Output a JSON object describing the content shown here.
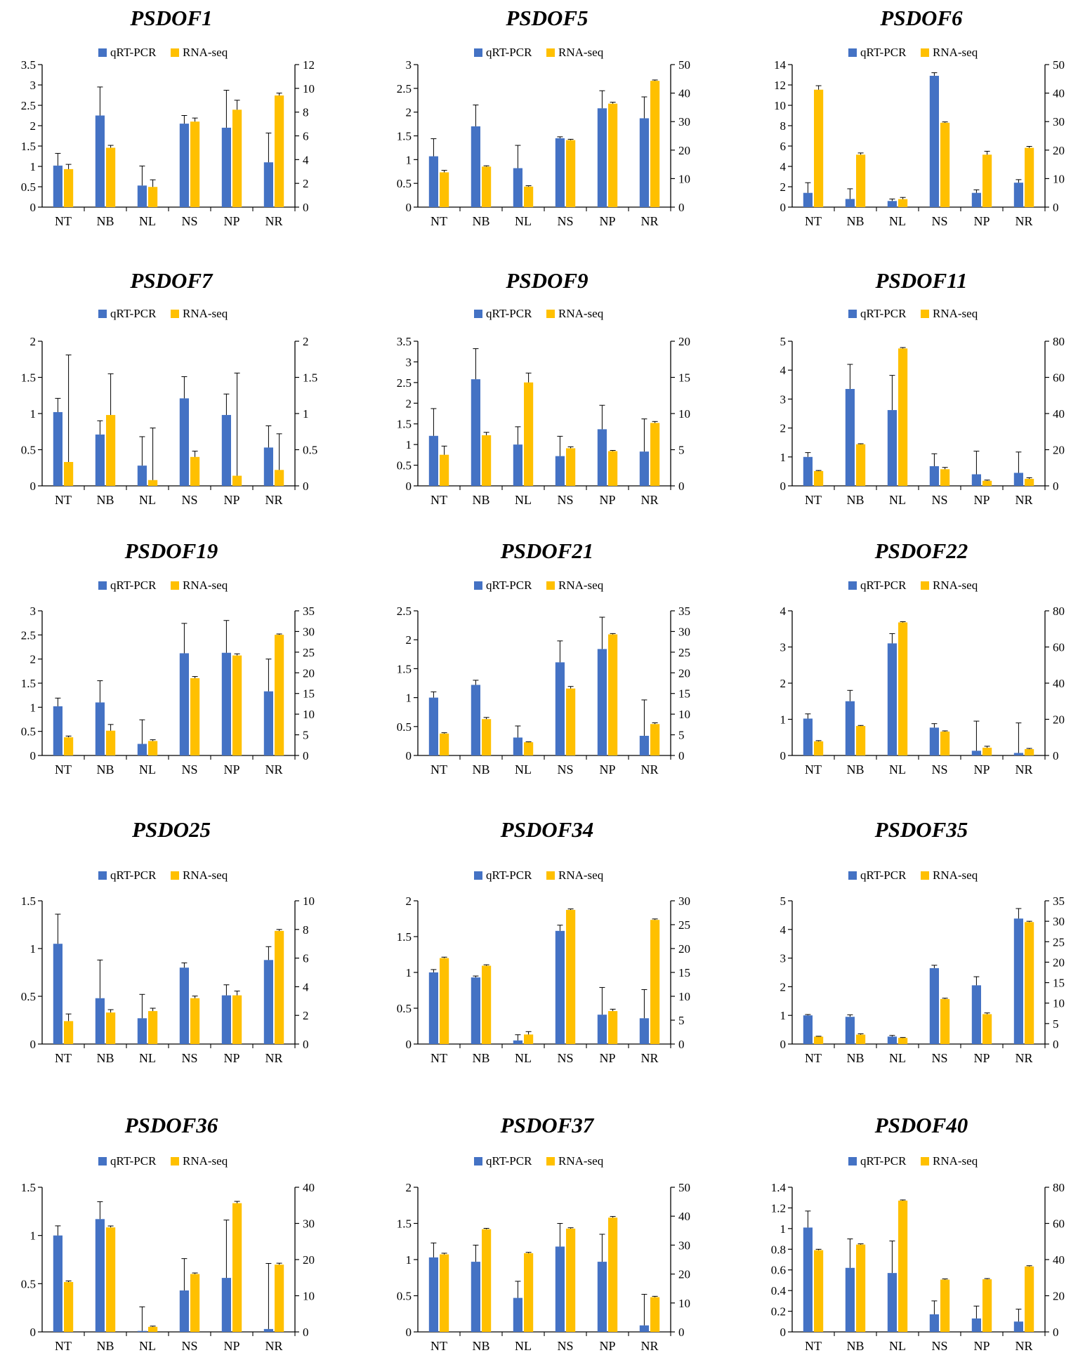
{
  "colors": {
    "qrt": "#4472C4",
    "rna": "#FFC000",
    "axis": "#000000",
    "errorbar": "#000000"
  },
  "chart_data": [
    {
      "type": "bar",
      "title": "PSDOF1",
      "categories": [
        "NT",
        "NB",
        "NL",
        "NS",
        "NP",
        "NR"
      ],
      "left_axis": {
        "max": 3.5,
        "ticks": [
          "0",
          "0.5",
          "1",
          "1.5",
          "2",
          "2.5",
          "3",
          "3.5"
        ]
      },
      "right_axis": {
        "max": 12,
        "ticks": [
          "0",
          "2",
          "4",
          "6",
          "8",
          "10",
          "12"
        ]
      },
      "series": [
        {
          "name": "qRT-PCR",
          "axis": "left",
          "values": [
            1.02,
            2.25,
            0.53,
            2.05,
            1.95,
            1.1
          ],
          "errors": [
            0.3,
            0.7,
            0.48,
            0.2,
            0.92,
            0.72
          ]
        },
        {
          "name": "RNA-seq",
          "axis": "right",
          "values": [
            3.2,
            5.0,
            1.7,
            7.2,
            8.2,
            9.4
          ],
          "errors": [
            0.4,
            0.2,
            0.6,
            0.3,
            0.8,
            0.2
          ]
        }
      ]
    },
    {
      "type": "bar",
      "title": "PSDOF5",
      "categories": [
        "NT",
        "NB",
        "NL",
        "NS",
        "NP",
        "NR"
      ],
      "left_axis": {
        "max": 3,
        "ticks": [
          "0",
          "0.5",
          "1",
          "1.5",
          "2",
          "2.5",
          "3"
        ]
      },
      "right_axis": {
        "max": 50,
        "ticks": [
          "0",
          "10",
          "20",
          "30",
          "40",
          "50"
        ]
      },
      "series": [
        {
          "name": "qRT-PCR",
          "axis": "left",
          "values": [
            1.07,
            1.7,
            0.82,
            1.45,
            2.08,
            1.87
          ],
          "errors": [
            0.37,
            0.45,
            0.48,
            0.03,
            0.37,
            0.45
          ]
        },
        {
          "name": "RNA-seq",
          "axis": "right",
          "values": [
            12.2,
            14.2,
            7.2,
            23.5,
            36.3,
            44.3
          ],
          "errors": [
            0.7,
            0.3,
            0.3,
            0.3,
            0.5,
            0.3
          ]
        }
      ]
    },
    {
      "type": "bar",
      "title": "PSDOF6",
      "categories": [
        "NT",
        "NB",
        "NL",
        "NS",
        "NP",
        "NR"
      ],
      "left_axis": {
        "max": 14,
        "ticks": [
          "0",
          "2",
          "4",
          "6",
          "8",
          "10",
          "12",
          "14"
        ]
      },
      "right_axis": {
        "max": 50,
        "ticks": [
          "0",
          "10",
          "20",
          "30",
          "40",
          "50"
        ]
      },
      "series": [
        {
          "name": "qRT-PCR",
          "axis": "left",
          "values": [
            1.4,
            0.8,
            0.6,
            12.9,
            1.4,
            2.4
          ],
          "errors": [
            1.0,
            1.0,
            0.2,
            0.3,
            0.3,
            0.3
          ]
        },
        {
          "name": "RNA-seq",
          "axis": "right",
          "values": [
            41.2,
            18.4,
            2.8,
            29.6,
            18.4,
            20.8
          ],
          "errors": [
            1.4,
            0.6,
            0.6,
            0.3,
            1.2,
            0.5
          ]
        }
      ]
    },
    {
      "type": "bar",
      "title": "PSDOF7",
      "categories": [
        "NT",
        "NB",
        "NL",
        "NS",
        "NP",
        "NR"
      ],
      "left_axis": {
        "max": 2,
        "ticks": [
          "0",
          "0.5",
          "1",
          "1.5",
          "2"
        ]
      },
      "right_axis": {
        "max": 2,
        "ticks": [
          "0",
          "0.5",
          "1",
          "1.5",
          "2"
        ]
      },
      "series": [
        {
          "name": "qRT-PCR",
          "axis": "left",
          "values": [
            1.02,
            0.71,
            0.28,
            1.21,
            0.98,
            0.53
          ],
          "errors": [
            0.19,
            0.19,
            0.4,
            0.3,
            0.29,
            0.3
          ]
        },
        {
          "name": "RNA-seq",
          "axis": "right",
          "values": [
            0.33,
            0.98,
            0.08,
            0.4,
            0.14,
            0.22
          ],
          "errors": [
            1.48,
            0.57,
            0.72,
            0.08,
            1.42,
            0.5
          ]
        }
      ]
    },
    {
      "type": "bar",
      "title": "PSDOF9",
      "categories": [
        "NT",
        "NB",
        "NL",
        "NS",
        "NP",
        "NR"
      ],
      "left_axis": {
        "max": 3.5,
        "ticks": [
          "0",
          "0.5",
          "1",
          "1.5",
          "2",
          "2.5",
          "3",
          "3.5"
        ]
      },
      "right_axis": {
        "max": 20,
        "ticks": [
          "0",
          "5",
          "10",
          "15",
          "20"
        ]
      },
      "series": [
        {
          "name": "qRT-PCR",
          "axis": "left",
          "values": [
            1.21,
            2.58,
            1.0,
            0.72,
            1.37,
            0.83
          ],
          "errors": [
            0.66,
            0.74,
            0.43,
            0.48,
            0.58,
            0.79
          ]
        },
        {
          "name": "RNA-seq",
          "axis": "right",
          "values": [
            4.3,
            7.0,
            14.3,
            5.2,
            4.8,
            8.7
          ],
          "errors": [
            1.2,
            0.4,
            1.3,
            0.2,
            0.1,
            0.2
          ]
        }
      ]
    },
    {
      "type": "bar",
      "title": "PSDOF11",
      "categories": [
        "NT",
        "NB",
        "NL",
        "NS",
        "NP",
        "NR"
      ],
      "left_axis": {
        "max": 5,
        "ticks": [
          "0",
          "1",
          "2",
          "3",
          "4",
          "5"
        ]
      },
      "right_axis": {
        "max": 80,
        "ticks": [
          "0",
          "20",
          "40",
          "60",
          "80"
        ]
      },
      "series": [
        {
          "name": "qRT-PCR",
          "axis": "left",
          "values": [
            1.0,
            3.35,
            2.62,
            0.68,
            0.4,
            0.45
          ],
          "errors": [
            0.15,
            0.85,
            1.2,
            0.43,
            0.8,
            0.72
          ]
        },
        {
          "name": "RNA-seq",
          "axis": "right",
          "values": [
            8.2,
            23.0,
            76.0,
            9.2,
            2.8,
            3.9
          ],
          "errors": [
            0.3,
            0.3,
            0.5,
            1.0,
            0.4,
            0.6
          ]
        }
      ]
    },
    {
      "type": "bar",
      "title": "PSDOF19",
      "categories": [
        "NT",
        "NB",
        "NL",
        "NS",
        "NP",
        "NR"
      ],
      "left_axis": {
        "max": 3,
        "ticks": [
          "0",
          "0.5",
          "1",
          "1.5",
          "2",
          "2.5",
          "3"
        ]
      },
      "right_axis": {
        "max": 35,
        "ticks": [
          "0",
          "5",
          "10",
          "15",
          "20",
          "25",
          "30",
          "35"
        ]
      },
      "series": [
        {
          "name": "qRT-PCR",
          "axis": "left",
          "values": [
            1.02,
            1.1,
            0.24,
            2.12,
            2.13,
            1.33
          ],
          "errors": [
            0.17,
            0.45,
            0.5,
            0.62,
            0.67,
            0.67
          ]
        },
        {
          "name": "RNA-seq",
          "axis": "right",
          "values": [
            4.4,
            6.0,
            3.5,
            18.7,
            24.2,
            29.2
          ],
          "errors": [
            0.3,
            1.5,
            0.3,
            0.4,
            0.4,
            0.2
          ]
        }
      ]
    },
    {
      "type": "bar",
      "title": "PSDOF21",
      "categories": [
        "NT",
        "NB",
        "NL",
        "NS",
        "NP",
        "NR"
      ],
      "left_axis": {
        "max": 2.5,
        "ticks": [
          "0",
          "0.5",
          "1",
          "1.5",
          "2",
          "2.5"
        ]
      },
      "right_axis": {
        "max": 35,
        "ticks": [
          "0",
          "5",
          "10",
          "15",
          "20",
          "25",
          "30",
          "35"
        ]
      },
      "series": [
        {
          "name": "qRT-PCR",
          "axis": "left",
          "values": [
            1.0,
            1.22,
            0.31,
            1.61,
            1.84,
            0.34
          ],
          "errors": [
            0.1,
            0.08,
            0.2,
            0.37,
            0.55,
            0.62
          ]
        },
        {
          "name": "RNA-seq",
          "axis": "right",
          "values": [
            5.3,
            8.8,
            3.2,
            16.2,
            29.3,
            7.6
          ],
          "errors": [
            0.2,
            0.4,
            0.1,
            0.5,
            0.2,
            0.3
          ]
        }
      ]
    },
    {
      "type": "bar",
      "title": "PSDOF22",
      "categories": [
        "NT",
        "NB",
        "NL",
        "NS",
        "NP",
        "NR"
      ],
      "left_axis": {
        "max": 4,
        "ticks": [
          "0",
          "1",
          "2",
          "3",
          "4"
        ]
      },
      "right_axis": {
        "max": 80,
        "ticks": [
          "0",
          "20",
          "40",
          "60",
          "80"
        ]
      },
      "series": [
        {
          "name": "qRT-PCR",
          "axis": "left",
          "values": [
            1.02,
            1.5,
            3.1,
            0.77,
            0.13,
            0.07
          ],
          "errors": [
            0.13,
            0.3,
            0.27,
            0.11,
            0.82,
            0.83
          ]
        },
        {
          "name": "RNA-seq",
          "axis": "right",
          "values": [
            7.8,
            16.3,
            73.6,
            13.2,
            4.3,
            3.5
          ],
          "errors": [
            0.4,
            0.3,
            0.4,
            0.4,
            0.8,
            0.4
          ]
        }
      ]
    },
    {
      "type": "bar",
      "title": "PSDO25",
      "categories": [
        "NT",
        "NB",
        "NL",
        "NS",
        "NP",
        "NR"
      ],
      "left_axis": {
        "max": 1.5,
        "ticks": [
          "0",
          "0.5",
          "1",
          "1.5"
        ]
      },
      "right_axis": {
        "max": 10,
        "ticks": [
          "0",
          "2",
          "4",
          "6",
          "8",
          "10"
        ]
      },
      "series": [
        {
          "name": "qRT-PCR",
          "axis": "left",
          "values": [
            1.05,
            0.48,
            0.27,
            0.8,
            0.51,
            0.88
          ],
          "errors": [
            0.31,
            0.4,
            0.25,
            0.05,
            0.11,
            0.14
          ]
        },
        {
          "name": "RNA-seq",
          "axis": "right",
          "values": [
            1.6,
            2.2,
            2.3,
            3.2,
            3.4,
            7.9
          ],
          "errors": [
            0.5,
            0.2,
            0.2,
            0.15,
            0.3,
            0.1
          ]
        }
      ]
    },
    {
      "type": "bar",
      "title": "PSDOF34",
      "categories": [
        "NT",
        "NB",
        "NL",
        "NS",
        "NP",
        "NR"
      ],
      "left_axis": {
        "max": 2,
        "ticks": [
          "0",
          "0.5",
          "1",
          "1.5",
          "2"
        ]
      },
      "right_axis": {
        "max": 30,
        "ticks": [
          "0",
          "5",
          "10",
          "15",
          "20",
          "25",
          "30"
        ]
      },
      "series": [
        {
          "name": "qRT-PCR",
          "axis": "left",
          "values": [
            1.0,
            0.93,
            0.05,
            1.58,
            0.41,
            0.36
          ],
          "errors": [
            0.04,
            0.02,
            0.08,
            0.08,
            0.38,
            0.4
          ]
        },
        {
          "name": "RNA-seq",
          "axis": "right",
          "values": [
            18.0,
            16.4,
            2.0,
            28.1,
            6.9,
            26.0
          ],
          "errors": [
            0.2,
            0.2,
            0.6,
            0.2,
            0.4,
            0.2
          ]
        }
      ]
    },
    {
      "type": "bar",
      "title": "PSDOF35",
      "categories": [
        "NT",
        "NB",
        "NL",
        "NS",
        "NP",
        "NR"
      ],
      "left_axis": {
        "max": 5,
        "ticks": [
          "0",
          "1",
          "2",
          "3",
          "4",
          "5"
        ]
      },
      "right_axis": {
        "max": 35,
        "ticks": [
          "0",
          "5",
          "10",
          "15",
          "20",
          "25",
          "30",
          "35"
        ]
      },
      "series": [
        {
          "name": "qRT-PCR",
          "axis": "left",
          "values": [
            1.0,
            0.95,
            0.26,
            2.65,
            2.05,
            4.38
          ],
          "errors": [
            0.03,
            0.07,
            0.04,
            0.1,
            0.3,
            0.35
          ]
        },
        {
          "name": "RNA-seq",
          "axis": "right",
          "values": [
            1.8,
            2.3,
            1.5,
            11.0,
            7.3,
            29.8
          ],
          "errors": [
            0.1,
            0.2,
            0.1,
            0.2,
            0.3,
            0.2
          ]
        }
      ]
    },
    {
      "type": "bar",
      "title": "PSDOF36",
      "categories": [
        "NT",
        "NB",
        "NL",
        "NS",
        "NP",
        "NR"
      ],
      "left_axis": {
        "max": 1.5,
        "ticks": [
          "0",
          "0.5",
          "1",
          "1.5"
        ]
      },
      "right_axis": {
        "max": 40,
        "ticks": [
          "0",
          "10",
          "20",
          "30",
          "40"
        ]
      },
      "series": [
        {
          "name": "qRT-PCR",
          "axis": "left",
          "values": [
            1.0,
            1.17,
            0.01,
            0.43,
            0.56,
            0.03
          ],
          "errors": [
            0.1,
            0.18,
            0.25,
            0.33,
            0.6,
            0.68
          ]
        },
        {
          "name": "RNA-seq",
          "axis": "right",
          "values": [
            13.8,
            28.9,
            1.4,
            16.0,
            35.6,
            18.6
          ],
          "errors": [
            0.3,
            0.4,
            0.2,
            0.3,
            0.5,
            0.4
          ]
        }
      ]
    },
    {
      "type": "bar",
      "title": "PSDOF37",
      "categories": [
        "NT",
        "NB",
        "NL",
        "NS",
        "NP",
        "NR"
      ],
      "left_axis": {
        "max": 2,
        "ticks": [
          "0",
          "0.5",
          "1",
          "1.5",
          "2"
        ]
      },
      "right_axis": {
        "max": 50,
        "ticks": [
          "0",
          "10",
          "20",
          "30",
          "40",
          "50"
        ]
      },
      "series": [
        {
          "name": "qRT-PCR",
          "axis": "left",
          "values": [
            1.03,
            0.97,
            0.47,
            1.18,
            0.97,
            0.09
          ],
          "errors": [
            0.2,
            0.23,
            0.23,
            0.32,
            0.38,
            0.43
          ]
        },
        {
          "name": "RNA-seq",
          "axis": "right",
          "values": [
            26.8,
            35.5,
            27.2,
            35.7,
            39.5,
            12.0
          ],
          "errors": [
            0.4,
            0.3,
            0.3,
            0.3,
            0.4,
            0.3
          ]
        }
      ]
    },
    {
      "type": "bar",
      "title": "PSDOF40",
      "categories": [
        "NT",
        "NB",
        "NL",
        "NS",
        "NP",
        "NR"
      ],
      "left_axis": {
        "max": 1.4,
        "ticks": [
          "0",
          "0.2",
          "0.4",
          "0.6",
          "0.8",
          "1",
          "1.2",
          "1.4"
        ]
      },
      "right_axis": {
        "max": 80,
        "ticks": [
          "0",
          "20",
          "40",
          "60",
          "80"
        ]
      },
      "series": [
        {
          "name": "qRT-PCR",
          "axis": "left",
          "values": [
            1.01,
            0.62,
            0.57,
            0.17,
            0.13,
            0.1
          ],
          "errors": [
            0.16,
            0.28,
            0.31,
            0.13,
            0.12,
            0.12
          ]
        },
        {
          "name": "RNA-seq",
          "axis": "right",
          "values": [
            45.2,
            48.3,
            72.6,
            28.9,
            29.1,
            36.2
          ],
          "errors": [
            0.5,
            0.4,
            0.4,
            0.4,
            0.4,
            0.4
          ]
        }
      ]
    }
  ]
}
